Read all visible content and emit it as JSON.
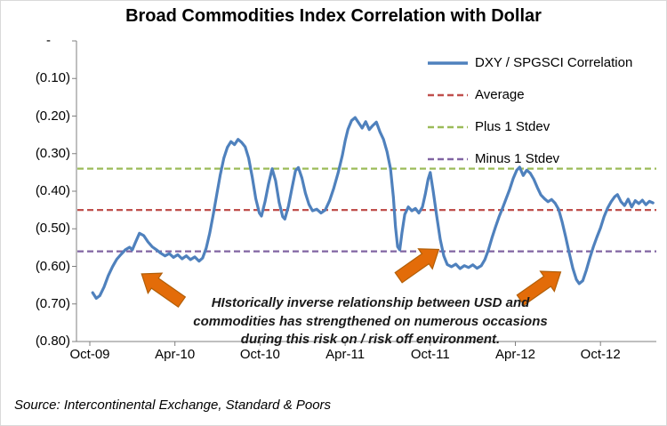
{
  "source_note": "Source: Intercontinental Exchange, Standard & Poors",
  "chart_data": {
    "type": "line",
    "title": "Broad Commodities Index Correlation with Dollar",
    "xlabel": "",
    "ylabel": "",
    "ylim": [
      -0.8,
      0.0
    ],
    "grid": false,
    "legend_position": "top-right",
    "y_ticks": [
      {
        "label": "-",
        "value": 0.0
      },
      {
        "label": "(0.10)",
        "value": -0.1
      },
      {
        "label": "(0.20)",
        "value": -0.2
      },
      {
        "label": "(0.30)",
        "value": -0.3
      },
      {
        "label": "(0.40)",
        "value": -0.4
      },
      {
        "label": "(0.50)",
        "value": -0.5
      },
      {
        "label": "(0.60)",
        "value": -0.6
      },
      {
        "label": "(0.70)",
        "value": -0.7
      },
      {
        "label": "(0.80)",
        "value": -0.8
      }
    ],
    "x_ticks": [
      {
        "label": "Oct-09",
        "month": 0
      },
      {
        "label": "Apr-10",
        "month": 6
      },
      {
        "label": "Oct-10",
        "month": 12
      },
      {
        "label": "Apr-11",
        "month": 18
      },
      {
        "label": "Oct-11",
        "month": 24
      },
      {
        "label": "Apr-12",
        "month": 30
      },
      {
        "label": "Oct-12",
        "month": 36
      }
    ],
    "stat_lines": [
      {
        "name": "Average",
        "value": -0.45,
        "color": "#C0504D"
      },
      {
        "name": "Plus 1 Stdev",
        "value": -0.34,
        "color": "#9BBB59"
      },
      {
        "name": "Minus 1 Stdev",
        "value": -0.56,
        "color": "#8064A2"
      }
    ],
    "legend": [
      {
        "label": "DXY / SPGSCI Correlation",
        "color": "#4F81BD",
        "style": "solid"
      },
      {
        "label": "Average",
        "color": "#C0504D",
        "style": "dashed"
      },
      {
        "label": "Plus 1 Stdev",
        "color": "#9BBB59",
        "style": "dashed"
      },
      {
        "label": "Minus 1 Stdev",
        "color": "#8064A2",
        "style": "dashed"
      }
    ],
    "series": [
      {
        "name": "DXY / SPGSCI Correlation",
        "color": "#4F81BD",
        "points": [
          [
            0.2,
            -0.67
          ],
          [
            0.45,
            -0.685
          ],
          [
            0.7,
            -0.678
          ],
          [
            1.0,
            -0.655
          ],
          [
            1.3,
            -0.625
          ],
          [
            1.6,
            -0.601
          ],
          [
            1.9,
            -0.581
          ],
          [
            2.2,
            -0.568
          ],
          [
            2.5,
            -0.556
          ],
          [
            2.8,
            -0.549
          ],
          [
            3.0,
            -0.556
          ],
          [
            3.2,
            -0.538
          ],
          [
            3.5,
            -0.512
          ],
          [
            3.8,
            -0.518
          ],
          [
            4.1,
            -0.535
          ],
          [
            4.4,
            -0.548
          ],
          [
            4.7,
            -0.556
          ],
          [
            5.0,
            -0.565
          ],
          [
            5.3,
            -0.572
          ],
          [
            5.6,
            -0.566
          ],
          [
            5.9,
            -0.576
          ],
          [
            6.2,
            -0.569
          ],
          [
            6.5,
            -0.58
          ],
          [
            6.8,
            -0.572
          ],
          [
            7.1,
            -0.582
          ],
          [
            7.4,
            -0.575
          ],
          [
            7.7,
            -0.586
          ],
          [
            7.95,
            -0.578
          ],
          [
            8.2,
            -0.552
          ],
          [
            8.45,
            -0.512
          ],
          [
            8.7,
            -0.462
          ],
          [
            8.95,
            -0.408
          ],
          [
            9.2,
            -0.356
          ],
          [
            9.45,
            -0.312
          ],
          [
            9.7,
            -0.283
          ],
          [
            9.95,
            -0.268
          ],
          [
            10.2,
            -0.276
          ],
          [
            10.45,
            -0.262
          ],
          [
            10.7,
            -0.27
          ],
          [
            10.95,
            -0.282
          ],
          [
            11.2,
            -0.312
          ],
          [
            11.45,
            -0.362
          ],
          [
            11.7,
            -0.42
          ],
          [
            11.95,
            -0.458
          ],
          [
            12.1,
            -0.466
          ],
          [
            12.35,
            -0.428
          ],
          [
            12.6,
            -0.38
          ],
          [
            12.85,
            -0.34
          ],
          [
            13.1,
            -0.372
          ],
          [
            13.35,
            -0.43
          ],
          [
            13.6,
            -0.468
          ],
          [
            13.75,
            -0.474
          ],
          [
            14.0,
            -0.44
          ],
          [
            14.25,
            -0.392
          ],
          [
            14.5,
            -0.345
          ],
          [
            14.7,
            -0.337
          ],
          [
            14.95,
            -0.365
          ],
          [
            15.2,
            -0.405
          ],
          [
            15.45,
            -0.435
          ],
          [
            15.7,
            -0.452
          ],
          [
            16.0,
            -0.448
          ],
          [
            16.3,
            -0.458
          ],
          [
            16.6,
            -0.45
          ],
          [
            16.9,
            -0.425
          ],
          [
            17.2,
            -0.392
          ],
          [
            17.5,
            -0.352
          ],
          [
            17.8,
            -0.305
          ],
          [
            18.0,
            -0.266
          ],
          [
            18.2,
            -0.235
          ],
          [
            18.45,
            -0.212
          ],
          [
            18.7,
            -0.204
          ],
          [
            18.95,
            -0.218
          ],
          [
            19.2,
            -0.232
          ],
          [
            19.45,
            -0.215
          ],
          [
            19.7,
            -0.236
          ],
          [
            19.95,
            -0.225
          ],
          [
            20.2,
            -0.216
          ],
          [
            20.45,
            -0.242
          ],
          [
            20.7,
            -0.262
          ],
          [
            20.95,
            -0.295
          ],
          [
            21.2,
            -0.34
          ],
          [
            21.4,
            -0.415
          ],
          [
            21.55,
            -0.495
          ],
          [
            21.7,
            -0.548
          ],
          [
            21.85,
            -0.556
          ],
          [
            22.0,
            -0.512
          ],
          [
            22.2,
            -0.462
          ],
          [
            22.45,
            -0.442
          ],
          [
            22.7,
            -0.452
          ],
          [
            22.95,
            -0.446
          ],
          [
            23.2,
            -0.458
          ],
          [
            23.45,
            -0.442
          ],
          [
            23.65,
            -0.408
          ],
          [
            23.85,
            -0.368
          ],
          [
            24.0,
            -0.35
          ],
          [
            24.2,
            -0.398
          ],
          [
            24.45,
            -0.465
          ],
          [
            24.7,
            -0.528
          ],
          [
            24.95,
            -0.572
          ],
          [
            25.2,
            -0.595
          ],
          [
            25.5,
            -0.601
          ],
          [
            25.8,
            -0.594
          ],
          [
            26.1,
            -0.606
          ],
          [
            26.4,
            -0.598
          ],
          [
            26.7,
            -0.603
          ],
          [
            27.0,
            -0.596
          ],
          [
            27.3,
            -0.605
          ],
          [
            27.6,
            -0.598
          ],
          [
            27.85,
            -0.582
          ],
          [
            28.1,
            -0.556
          ],
          [
            28.35,
            -0.524
          ],
          [
            28.6,
            -0.495
          ],
          [
            28.85,
            -0.468
          ],
          [
            29.1,
            -0.445
          ],
          [
            29.35,
            -0.42
          ],
          [
            29.6,
            -0.395
          ],
          [
            29.85,
            -0.366
          ],
          [
            30.1,
            -0.344
          ],
          [
            30.3,
            -0.336
          ],
          [
            30.55,
            -0.358
          ],
          [
            30.8,
            -0.344
          ],
          [
            31.05,
            -0.352
          ],
          [
            31.3,
            -0.368
          ],
          [
            31.55,
            -0.39
          ],
          [
            31.8,
            -0.41
          ],
          [
            32.05,
            -0.42
          ],
          [
            32.3,
            -0.428
          ],
          [
            32.55,
            -0.422
          ],
          [
            32.8,
            -0.432
          ],
          [
            33.05,
            -0.448
          ],
          [
            33.3,
            -0.482
          ],
          [
            33.55,
            -0.522
          ],
          [
            33.8,
            -0.565
          ],
          [
            34.05,
            -0.605
          ],
          [
            34.3,
            -0.635
          ],
          [
            34.5,
            -0.646
          ],
          [
            34.75,
            -0.638
          ],
          [
            35.0,
            -0.61
          ],
          [
            35.25,
            -0.578
          ],
          [
            35.5,
            -0.548
          ],
          [
            35.75,
            -0.522
          ],
          [
            36.0,
            -0.498
          ],
          [
            36.25,
            -0.468
          ],
          [
            36.5,
            -0.445
          ],
          [
            36.75,
            -0.428
          ],
          [
            37.0,
            -0.415
          ],
          [
            37.2,
            -0.409
          ],
          [
            37.45,
            -0.428
          ],
          [
            37.7,
            -0.438
          ],
          [
            37.95,
            -0.421
          ],
          [
            38.2,
            -0.442
          ],
          [
            38.45,
            -0.425
          ],
          [
            38.7,
            -0.433
          ],
          [
            38.95,
            -0.424
          ],
          [
            39.2,
            -0.436
          ],
          [
            39.45,
            -0.427
          ],
          [
            39.7,
            -0.431
          ]
        ]
      }
    ],
    "annotations": {
      "text_lines": [
        "HIstorically inverse relationship between USD and",
        "commodities has strengthened on numerous occasions",
        "during this risk on / risk off environment."
      ],
      "arrow_color": "#E36C09",
      "arrows": [
        {
          "direction": "up-left",
          "head_month": 3.65,
          "head_value": -0.62
        },
        {
          "direction": "up-right",
          "head_month": 24.6,
          "head_value": -0.555
        },
        {
          "direction": "up-right",
          "head_month": 33.2,
          "head_value": -0.615
        }
      ]
    }
  }
}
